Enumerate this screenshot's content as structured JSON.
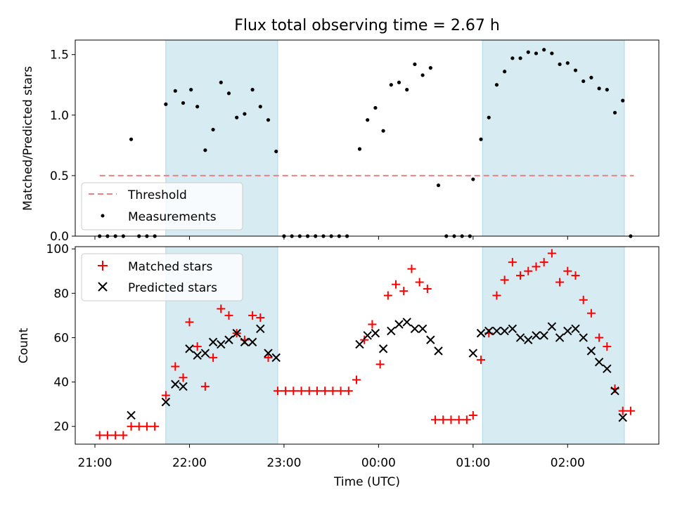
{
  "chart_data": [
    {
      "type": "scatter",
      "title": "Flux total observing time = 2.67 h",
      "xlabel": "",
      "ylabel": "Matched/Predicted stars",
      "ylim": [
        0,
        1.62
      ],
      "yticks": [
        "0.0",
        "0.5",
        "1.0",
        "1.5"
      ],
      "legend_position": "lower-left",
      "shaded_spans": [
        [
          "21:45",
          "22:56"
        ],
        [
          "01:06",
          "02:36"
        ]
      ],
      "threshold": {
        "name": "Threshold",
        "value": 0.5,
        "x_range": [
          "21:03",
          "02:42"
        ],
        "color": "#f08080"
      },
      "series": [
        {
          "name": "Measurements",
          "color": "#000000",
          "points": [
            [
              "21:03",
              0.0
            ],
            [
              "21:08",
              0.0
            ],
            [
              "21:13",
              0.0
            ],
            [
              "21:18",
              0.0
            ],
            [
              "21:23",
              0.8
            ],
            [
              "21:28",
              0.0
            ],
            [
              "21:33",
              0.0
            ],
            [
              "21:38",
              0.0
            ],
            [
              "21:45",
              1.09
            ],
            [
              "21:51",
              1.2
            ],
            [
              "21:56",
              1.1
            ],
            [
              "22:01",
              1.21
            ],
            [
              "22:05",
              1.07
            ],
            [
              "22:10",
              0.71
            ],
            [
              "22:15",
              0.88
            ],
            [
              "22:20",
              1.27
            ],
            [
              "22:25",
              1.18
            ],
            [
              "22:30",
              0.98
            ],
            [
              "22:35",
              1.01
            ],
            [
              "22:40",
              1.21
            ],
            [
              "22:45",
              1.07
            ],
            [
              "22:50",
              0.96
            ],
            [
              "22:55",
              0.7
            ],
            [
              "23:00",
              0.0
            ],
            [
              "23:05",
              0.0
            ],
            [
              "23:10",
              0.0
            ],
            [
              "23:15",
              0.0
            ],
            [
              "23:20",
              0.0
            ],
            [
              "23:25",
              0.0
            ],
            [
              "23:30",
              0.0
            ],
            [
              "23:35",
              0.0
            ],
            [
              "23:40",
              0.0
            ],
            [
              "23:48",
              0.72
            ],
            [
              "23:53",
              0.96
            ],
            [
              "23:58",
              1.06
            ],
            [
              "00:03",
              0.87
            ],
            [
              "00:08",
              1.25
            ],
            [
              "00:13",
              1.27
            ],
            [
              "00:18",
              1.21
            ],
            [
              "00:23",
              1.42
            ],
            [
              "00:28",
              1.33
            ],
            [
              "00:33",
              1.39
            ],
            [
              "00:38",
              0.42
            ],
            [
              "00:43",
              0.0
            ],
            [
              "00:48",
              0.0
            ],
            [
              "00:53",
              0.0
            ],
            [
              "00:58",
              0.0
            ],
            [
              "01:00",
              0.47
            ],
            [
              "01:05",
              0.8
            ],
            [
              "01:10",
              0.98
            ],
            [
              "01:15",
              1.25
            ],
            [
              "01:20",
              1.36
            ],
            [
              "01:25",
              1.47
            ],
            [
              "01:30",
              1.47
            ],
            [
              "01:35",
              1.52
            ],
            [
              "01:40",
              1.51
            ],
            [
              "01:45",
              1.54
            ],
            [
              "01:50",
              1.51
            ],
            [
              "01:55",
              1.42
            ],
            [
              "02:00",
              1.43
            ],
            [
              "02:05",
              1.37
            ],
            [
              "02:10",
              1.28
            ],
            [
              "02:15",
              1.31
            ],
            [
              "02:20",
              1.22
            ],
            [
              "02:25",
              1.21
            ],
            [
              "02:30",
              1.02
            ],
            [
              "02:35",
              1.12
            ],
            [
              "02:40",
              0.0
            ]
          ]
        }
      ]
    },
    {
      "type": "scatter",
      "title": "",
      "xlabel": "Time (UTC)",
      "ylabel": "Count",
      "ylim": [
        12,
        101
      ],
      "yticks": [
        "20",
        "40",
        "60",
        "80",
        "100"
      ],
      "xticks": [
        "21:00",
        "22:00",
        "23:00",
        "00:00",
        "01:00",
        "02:00"
      ],
      "legend_position": "top-left",
      "shaded_spans": [
        [
          "21:45",
          "22:56"
        ],
        [
          "01:06",
          "02:36"
        ]
      ],
      "series": [
        {
          "name": "Matched stars",
          "marker": "+",
          "color": "#ff0000",
          "points": [
            [
              "21:03",
              16
            ],
            [
              "21:08",
              16
            ],
            [
              "21:13",
              16
            ],
            [
              "21:18",
              16
            ],
            [
              "21:23",
              20
            ],
            [
              "21:28",
              20
            ],
            [
              "21:33",
              20
            ],
            [
              "21:38",
              20
            ],
            [
              "21:45",
              34
            ],
            [
              "21:51",
              47
            ],
            [
              "21:56",
              42
            ],
            [
              "22:00",
              67
            ],
            [
              "22:05",
              56
            ],
            [
              "22:10",
              38
            ],
            [
              "22:15",
              51
            ],
            [
              "22:20",
              73
            ],
            [
              "22:25",
              70
            ],
            [
              "22:30",
              62
            ],
            [
              "22:35",
              59
            ],
            [
              "22:40",
              70
            ],
            [
              "22:45",
              69
            ],
            [
              "22:50",
              51
            ],
            [
              "22:56",
              36
            ],
            [
              "23:01",
              36
            ],
            [
              "23:06",
              36
            ],
            [
              "23:11",
              36
            ],
            [
              "23:16",
              36
            ],
            [
              "23:21",
              36
            ],
            [
              "23:26",
              36
            ],
            [
              "23:31",
              36
            ],
            [
              "23:36",
              36
            ],
            [
              "23:41",
              36
            ],
            [
              "23:46",
              41
            ],
            [
              "23:51",
              59
            ],
            [
              "23:56",
              66
            ],
            [
              "00:01",
              48
            ],
            [
              "00:06",
              79
            ],
            [
              "00:11",
              84
            ],
            [
              "00:16",
              81
            ],
            [
              "00:21",
              91
            ],
            [
              "00:26",
              85
            ],
            [
              "00:31",
              82
            ],
            [
              "00:36",
              23
            ],
            [
              "00:41",
              23
            ],
            [
              "00:46",
              23
            ],
            [
              "00:51",
              23
            ],
            [
              "00:56",
              23
            ],
            [
              "01:00",
              25
            ],
            [
              "01:05",
              50
            ],
            [
              "01:10",
              62
            ],
            [
              "01:15",
              79
            ],
            [
              "01:20",
              86
            ],
            [
              "01:25",
              94
            ],
            [
              "01:30",
              88
            ],
            [
              "01:35",
              90
            ],
            [
              "01:40",
              92
            ],
            [
              "01:45",
              94
            ],
            [
              "01:50",
              98
            ],
            [
              "01:55",
              85
            ],
            [
              "02:00",
              90
            ],
            [
              "02:05",
              88
            ],
            [
              "02:10",
              77
            ],
            [
              "02:15",
              71
            ],
            [
              "02:20",
              60
            ],
            [
              "02:25",
              56
            ],
            [
              "02:30",
              37
            ],
            [
              "02:35",
              27
            ],
            [
              "02:40",
              27
            ]
          ]
        },
        {
          "name": "Predicted stars",
          "marker": "x",
          "color": "#000000",
          "points": [
            [
              "21:23",
              25
            ],
            [
              "21:45",
              31
            ],
            [
              "21:51",
              39
            ],
            [
              "21:56",
              38
            ],
            [
              "22:00",
              55
            ],
            [
              "22:05",
              52
            ],
            [
              "22:10",
              53
            ],
            [
              "22:15",
              58
            ],
            [
              "22:20",
              57
            ],
            [
              "22:25",
              59
            ],
            [
              "22:30",
              62
            ],
            [
              "22:35",
              58
            ],
            [
              "22:40",
              58
            ],
            [
              "22:45",
              64
            ],
            [
              "22:50",
              53
            ],
            [
              "22:55",
              51
            ],
            [
              "23:48",
              57
            ],
            [
              "23:53",
              61
            ],
            [
              "23:58",
              62
            ],
            [
              "00:03",
              55
            ],
            [
              "00:08",
              63
            ],
            [
              "00:13",
              66
            ],
            [
              "00:18",
              67
            ],
            [
              "00:23",
              64
            ],
            [
              "00:28",
              64
            ],
            [
              "00:33",
              59
            ],
            [
              "00:38",
              54
            ],
            [
              "01:00",
              53
            ],
            [
              "01:05",
              62
            ],
            [
              "01:10",
              63
            ],
            [
              "01:15",
              63
            ],
            [
              "01:20",
              63
            ],
            [
              "01:25",
              64
            ],
            [
              "01:30",
              60
            ],
            [
              "01:35",
              59
            ],
            [
              "01:40",
              61
            ],
            [
              "01:45",
              61
            ],
            [
              "01:50",
              65
            ],
            [
              "01:55",
              60
            ],
            [
              "02:00",
              63
            ],
            [
              "02:05",
              64
            ],
            [
              "02:10",
              60
            ],
            [
              "02:15",
              54
            ],
            [
              "02:20",
              49
            ],
            [
              "02:25",
              46
            ],
            [
              "02:30",
              36
            ],
            [
              "02:35",
              24
            ]
          ]
        }
      ]
    }
  ]
}
